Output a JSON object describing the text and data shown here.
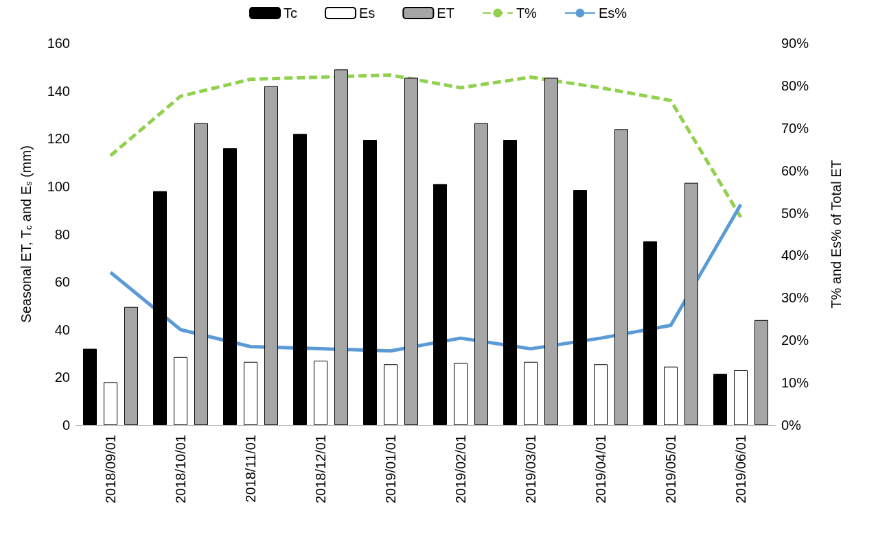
{
  "chart_data": {
    "type": "bar",
    "ylabel": "Seasonal ET, T$_{c}$ and E$_{s}$ (mm)",
    "y2label": "T% and Es% of Total ET",
    "categories": [
      "2018/09/01",
      "2018/10/01",
      "2018/11/01",
      "2018/12/01",
      "2019/01/01",
      "2019/02/01",
      "2019/03/01",
      "2019/04/01",
      "2019/05/01",
      "2019/06/01"
    ],
    "series": [
      {
        "name": "Tc",
        "color": "#000000",
        "values": [
          32,
          98,
          116,
          122,
          119.5,
          101,
          119.5,
          98.5,
          77,
          21.5
        ]
      },
      {
        "name": "Es",
        "color": "#ffffff",
        "values": [
          18,
          28.5,
          26.5,
          27,
          25.5,
          26,
          26.5,
          25.5,
          24.5,
          23
        ]
      },
      {
        "name": "ET",
        "color": "#a6a6a6",
        "values": [
          49.5,
          126.5,
          142,
          149,
          145.5,
          126.5,
          145.5,
          124,
          101.5,
          44
        ]
      },
      {
        "name": "T%",
        "type": "line",
        "axis": "y2",
        "line_style": "dashed",
        "color": "#92d050",
        "values": [
          63.5,
          77.5,
          81.5,
          82,
          82.5,
          79.5,
          82,
          79.5,
          76.5,
          49
        ]
      },
      {
        "name": "Es%",
        "type": "line",
        "axis": "y2",
        "line_style": "solid",
        "color": "#5b9bd5",
        "values": [
          36,
          22.5,
          18.5,
          18,
          17.5,
          20.5,
          18,
          20.5,
          23.5,
          52
        ]
      }
    ],
    "ylim": [
      0,
      160
    ],
    "yticks": [
      0,
      20,
      40,
      60,
      80,
      100,
      120,
      140,
      160
    ],
    "y2lim": [
      0,
      90
    ],
    "y2ticks": [
      {
        "value": 0,
        "label": "0%"
      },
      {
        "value": 10,
        "label": "10%"
      },
      {
        "value": 20,
        "label": "20%"
      },
      {
        "value": 30,
        "label": "30%"
      },
      {
        "value": 40,
        "label": "40%"
      },
      {
        "value": 50,
        "label": "50%"
      },
      {
        "value": 60,
        "label": "60%"
      },
      {
        "value": 70,
        "label": "70%"
      },
      {
        "value": 80,
        "label": "80%"
      },
      {
        "value": 90,
        "label": "90%"
      }
    ],
    "grid": false,
    "legend": "top",
    "marker": "none"
  }
}
